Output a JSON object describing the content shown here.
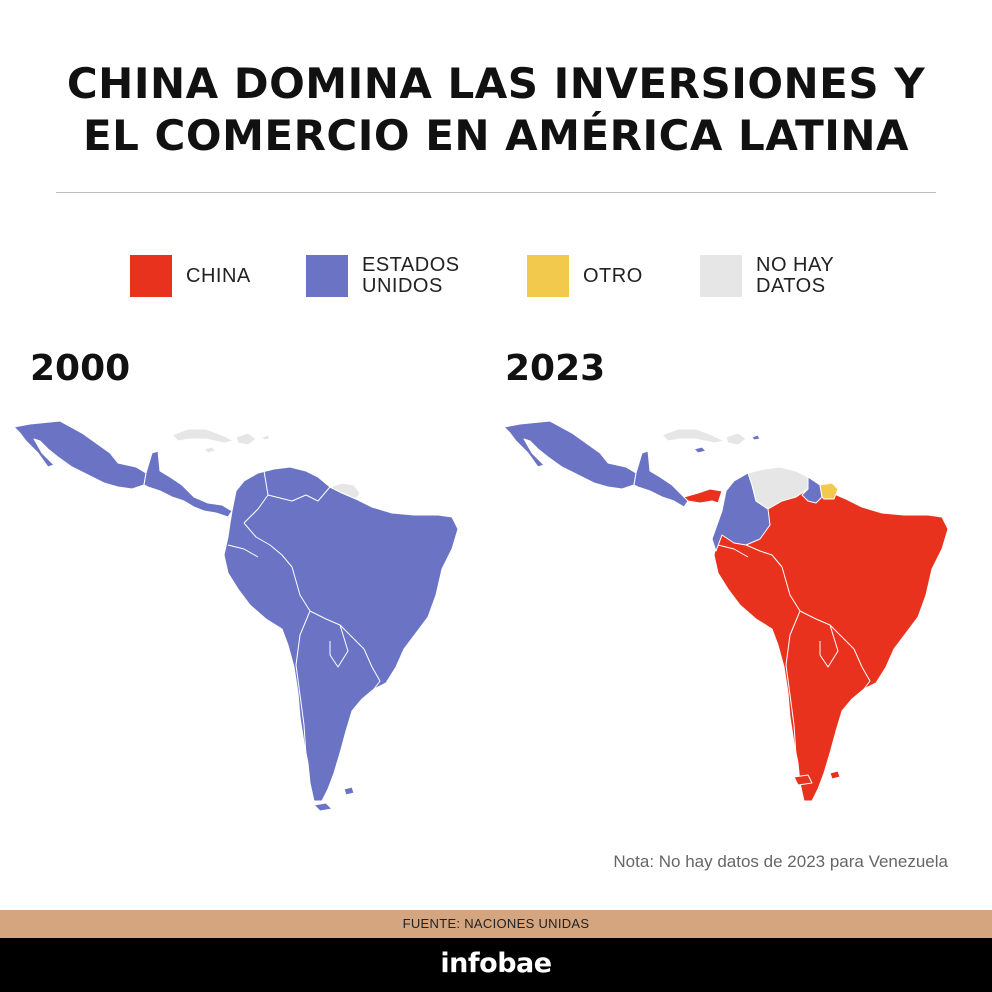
{
  "title": {
    "line1": "CHINA DOMINA LAS INVERSIONES Y",
    "line2": "EL COMERCIO EN AMÉRICA LATINA"
  },
  "legend": [
    {
      "label_line1": "CHINA",
      "label_line2": "",
      "color": "#e8321e"
    },
    {
      "label_line1": "ESTADOS",
      "label_line2": "UNIDOS",
      "color": "#6b74c4"
    },
    {
      "label_line1": "OTRO",
      "label_line2": "",
      "color": "#f2c94c"
    },
    {
      "label_line1": "NO HAY",
      "label_line2": "DATOS",
      "color": "#e6e6e6"
    }
  ],
  "maps": [
    {
      "year": "2000",
      "regions": {
        "mexico": "Estados Unidos",
        "central_america": "Estados Unidos",
        "caribbean": "No hay datos",
        "colombia": "Estados Unidos",
        "venezuela": "Estados Unidos",
        "guianas": "No hay datos",
        "south_america": "Estados Unidos"
      }
    },
    {
      "year": "2023",
      "regions": {
        "mexico": "Estados Unidos",
        "central_america": "Estados Unidos",
        "panama": "China",
        "caribbean": "No hay datos",
        "colombia": "Estados Unidos",
        "venezuela": "No hay datos",
        "guyana": "Estados Unidos",
        "suriname": "Otro",
        "south_america": "China"
      }
    }
  ],
  "note": "Nota: No hay datos de 2023 para Venezuela",
  "source": "FUENTE: NACIONES UNIDAS",
  "brand": "infobae"
}
